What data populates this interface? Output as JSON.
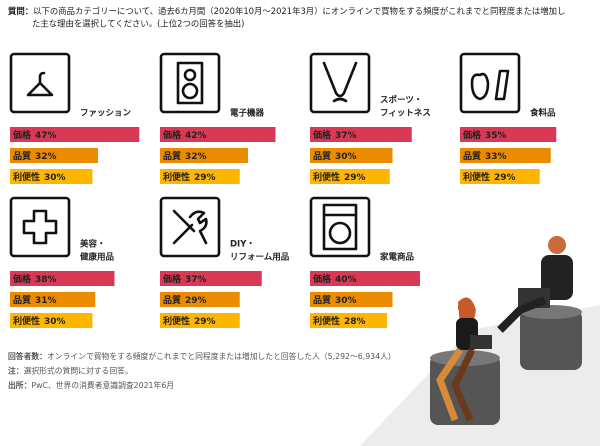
{
  "question": {
    "label": "質問：",
    "lines": [
      "以下の商品カテゴリーについて、過去6カ月間（2020年10月～2021年3月）にオンラインで買物をする頻度がこれまでと同程度または増加し",
      "た主な理由を選択してください。(上位2つの回答を抽出)"
    ]
  },
  "chart_data": [
    {
      "type": "bar",
      "title": [
        "ファッション"
      ],
      "categories": [
        "価格",
        "品質",
        "利便性"
      ],
      "values": [
        47,
        32,
        30
      ],
      "value_labels": [
        "47%",
        "32%",
        "30%"
      ],
      "colors": [
        "#d93954",
        "#eb8c00",
        "#ffb600"
      ]
    },
    {
      "type": "bar",
      "title": [
        "電子機器"
      ],
      "categories": [
        "価格",
        "品質",
        "利便性"
      ],
      "values": [
        42,
        32,
        29
      ],
      "value_labels": [
        "42%",
        "32%",
        "29%"
      ],
      "colors": [
        "#d93954",
        "#eb8c00",
        "#ffb600"
      ]
    },
    {
      "type": "bar",
      "title": [
        "スポーツ・",
        "フィットネス"
      ],
      "categories": [
        "価格",
        "品質",
        "利便性"
      ],
      "values": [
        37,
        30,
        29
      ],
      "value_labels": [
        "37%",
        "30%",
        "29%"
      ],
      "colors": [
        "#d93954",
        "#eb8c00",
        "#ffb600"
      ]
    },
    {
      "type": "bar",
      "title": [
        "食料品"
      ],
      "categories": [
        "価格",
        "品質",
        "利便性"
      ],
      "values": [
        35,
        33,
        29
      ],
      "value_labels": [
        "35%",
        "33%",
        "29%"
      ],
      "colors": [
        "#d93954",
        "#eb8c00",
        "#ffb600"
      ]
    },
    {
      "type": "bar",
      "title": [
        "美容・",
        "健康用品"
      ],
      "categories": [
        "価格",
        "品質",
        "利便性"
      ],
      "values": [
        38,
        31,
        30
      ],
      "value_labels": [
        "38%",
        "31%",
        "30%"
      ],
      "colors": [
        "#d93954",
        "#eb8c00",
        "#ffb600"
      ]
    },
    {
      "type": "bar",
      "title": [
        "DIY・",
        "リフォーム用品"
      ],
      "categories": [
        "価格",
        "品質",
        "利便性"
      ],
      "values": [
        37,
        29,
        29
      ],
      "value_labels": [
        "37%",
        "29%",
        "29%"
      ],
      "colors": [
        "#d93954",
        "#eb8c00",
        "#ffb600"
      ]
    },
    {
      "type": "bar",
      "title": [
        "家電商品"
      ],
      "categories": [
        "価格",
        "品質",
        "利便性"
      ],
      "values": [
        40,
        30,
        28
      ],
      "value_labels": [
        "40%",
        "30%",
        "28%"
      ],
      "colors": [
        "#d93954",
        "#eb8c00",
        "#ffb600"
      ]
    }
  ],
  "notes": [
    {
      "label": "回答者数：",
      "text": "オンラインで買物をする頻度がこれまでと同程度または増加したと回答した人（5,292～6,934人）"
    },
    {
      "label": "注：",
      "text": "選択形式の質問に対する回答。"
    },
    {
      "label": "出所：",
      "text": "PwC、世界の消費者意識調査2021年6月"
    }
  ]
}
